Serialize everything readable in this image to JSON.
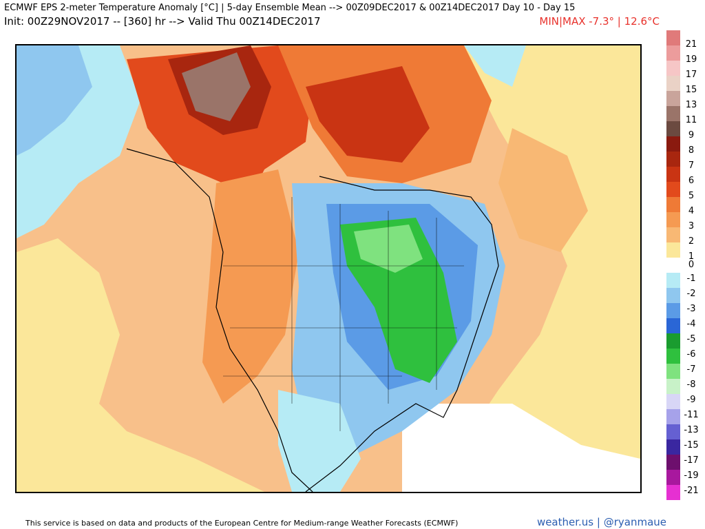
{
  "header": {
    "title_line1": "ECMWF EPS 2-meter Temperature Anomaly [°C] | 5-day Ensemble Mean --> 00Z09DEC2017 & 00Z14DEC2017   Day 10 - Day 15",
    "title_line2": "Init: 00Z29NOV2017 -- [360] hr --> Valid Thu 00Z14DEC2017",
    "minmax": "MIN|MAX -7.3° | 12.6°C"
  },
  "legend": {
    "entries": [
      {
        "label": "21",
        "color": "#e07a7a"
      },
      {
        "label": "19",
        "color": "#ec9c9c"
      },
      {
        "label": "17",
        "color": "#f6c6c6"
      },
      {
        "label": "15",
        "color": "#ead2c6"
      },
      {
        "label": "13",
        "color": "#c9a49b"
      },
      {
        "label": "11",
        "color": "#9a7469"
      },
      {
        "label": "9",
        "color": "#6b4a40"
      },
      {
        "label": "8",
        "color": "#8a1a0f"
      },
      {
        "label": "7",
        "color": "#a8260f"
      },
      {
        "label": "6",
        "color": "#c93413"
      },
      {
        "label": "5",
        "color": "#e24a1c"
      },
      {
        "label": "4",
        "color": "#ef7a36"
      },
      {
        "label": "3",
        "color": "#f59a52"
      },
      {
        "label": "2",
        "color": "#f8b874"
      },
      {
        "label": "1",
        "color": "#fbe79a"
      },
      {
        "label": "0",
        "color": "#ffffff"
      },
      {
        "label": "-1",
        "color": "#b6ebf5"
      },
      {
        "label": "-2",
        "color": "#8fc7ef"
      },
      {
        "label": "-3",
        "color": "#5b9be6"
      },
      {
        "label": "-4",
        "color": "#2a66d6"
      },
      {
        "label": "-5",
        "color": "#1a9c2f"
      },
      {
        "label": "-6",
        "color": "#2fc03e"
      },
      {
        "label": "-7",
        "color": "#7fe27f"
      },
      {
        "label": "-8",
        "color": "#c8f2c8"
      },
      {
        "label": "-9",
        "color": "#d8d6f6"
      },
      {
        "label": "-11",
        "color": "#a6a2ea"
      },
      {
        "label": "-13",
        "color": "#6560d2"
      },
      {
        "label": "-15",
        "color": "#3a27a0"
      },
      {
        "label": "-17",
        "color": "#6d0f6d"
      },
      {
        "label": "-19",
        "color": "#a8189e"
      },
      {
        "label": "-21",
        "color": "#e630d2"
      },
      {
        "label": "",
        "color": "#f58ae6"
      }
    ]
  },
  "footer": {
    "disclaimer": "This service is based on data and products of the European Centre for Medium-range Weather Forecasts (ECMWF)",
    "brand": "weather.us | @ryanmaue"
  }
}
